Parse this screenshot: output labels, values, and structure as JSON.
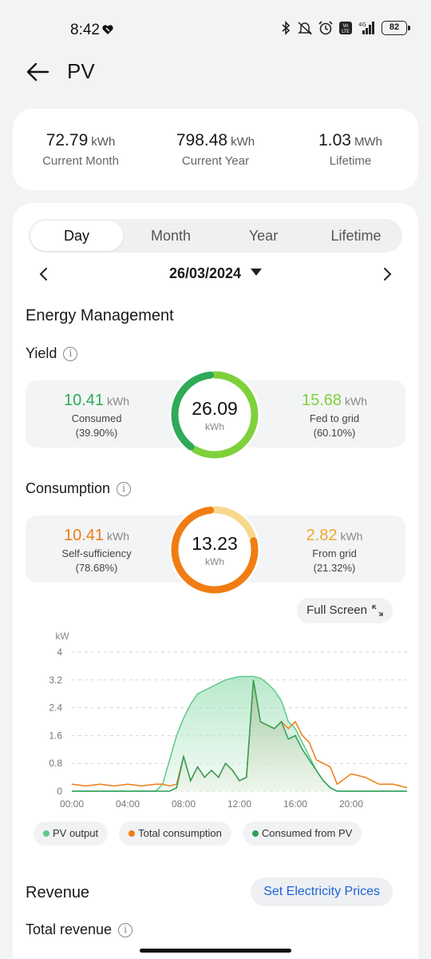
{
  "status_bar": {
    "time": "8:42",
    "battery": "82",
    "network": "4G"
  },
  "header": {
    "title": "PV"
  },
  "summary": [
    {
      "value": "72.79",
      "unit": "kWh",
      "label": "Current Month"
    },
    {
      "value": "798.48",
      "unit": "kWh",
      "label": "Current Year"
    },
    {
      "value": "1.03",
      "unit": "MWh",
      "label": "Lifetime"
    }
  ],
  "tabs": [
    "Day",
    "Month",
    "Year",
    "Lifetime"
  ],
  "date": "26/03/2024",
  "energy_management": {
    "title": "Energy Management",
    "yield": {
      "title": "Yield",
      "total": "26.09",
      "total_unit": "kWh",
      "left": {
        "value": "10.41",
        "unit": "kWh",
        "label": "Consumed",
        "pct": "(39.90%)",
        "color": "#2faa57"
      },
      "right": {
        "value": "15.68",
        "unit": "kWh",
        "label": "Fed to grid",
        "pct": "(60.10%)",
        "color": "#7ed13b"
      },
      "ring_fraction_left": 0.399
    },
    "consumption": {
      "title": "Consumption",
      "total": "13.23",
      "total_unit": "kWh",
      "left": {
        "value": "10.41",
        "unit": "kWh",
        "label": "Self-sufficiency",
        "pct": "(78.68%)",
        "color": "#f07d13"
      },
      "right": {
        "value": "2.82",
        "unit": "kWh",
        "label": "From grid",
        "pct": "(21.32%)",
        "color": "#f0a92a"
      },
      "ring_fraction_left": 0.7868
    }
  },
  "full_screen_label": "Full Screen",
  "chart_data": {
    "type": "area",
    "ylabel": "kW",
    "ylim": [
      0,
      4
    ],
    "yticks": [
      "0",
      "0.8",
      "1.6",
      "2.4",
      "3.2",
      "4"
    ],
    "xticks": [
      "00:00",
      "04:00",
      "08:00",
      "12:00",
      "16:00",
      "20:00"
    ],
    "x_hours": [
      0,
      1,
      2,
      3,
      4,
      5,
      6,
      6.5,
      7,
      7.5,
      8,
      8.5,
      9,
      9.5,
      10,
      10.5,
      11,
      11.5,
      12,
      12.5,
      13,
      13.5,
      14,
      14.5,
      15,
      15.5,
      16,
      16.5,
      17,
      17.5,
      18,
      18.5,
      19,
      20,
      21,
      22,
      23,
      24
    ],
    "series": [
      {
        "name": "PV output",
        "color": "#62c98b",
        "values": [
          0,
          0,
          0,
          0,
          0,
          0,
          0,
          0.2,
          0.9,
          1.6,
          2.1,
          2.5,
          2.8,
          2.9,
          3.0,
          3.1,
          3.2,
          3.25,
          3.3,
          3.3,
          3.3,
          3.25,
          3.1,
          2.9,
          2.6,
          2.0,
          1.8,
          1.4,
          1.0,
          0.6,
          0.3,
          0.1,
          0,
          0,
          0,
          0,
          0,
          0
        ]
      },
      {
        "name": "Total consumption",
        "color": "#f07d13",
        "values": [
          0.2,
          0.15,
          0.2,
          0.15,
          0.2,
          0.15,
          0.2,
          0.2,
          0.15,
          0.2,
          1.0,
          0.3,
          0.7,
          0.4,
          0.6,
          0.4,
          0.8,
          0.6,
          0.3,
          0.4,
          3.2,
          2.0,
          1.9,
          1.8,
          2.0,
          1.8,
          2.0,
          1.6,
          1.4,
          0.9,
          0.8,
          0.7,
          0.2,
          0.5,
          0.4,
          0.2,
          0.2,
          0.1
        ]
      },
      {
        "name": "Consumed from PV",
        "color": "#2f9e5b",
        "values": [
          0,
          0,
          0,
          0,
          0,
          0,
          0,
          0,
          0,
          0.1,
          1.0,
          0.3,
          0.7,
          0.4,
          0.6,
          0.4,
          0.8,
          0.6,
          0.3,
          0.4,
          3.2,
          2.0,
          1.9,
          1.8,
          2.0,
          1.5,
          1.6,
          1.2,
          0.9,
          0.6,
          0.3,
          0.1,
          0,
          0,
          0,
          0,
          0,
          0
        ]
      }
    ]
  },
  "legend": [
    "PV output",
    "Total consumption",
    "Consumed from PV"
  ],
  "revenue": {
    "title": "Revenue",
    "set_price_label": "Set Electricity Prices",
    "total_revenue_label": "Total revenue"
  }
}
